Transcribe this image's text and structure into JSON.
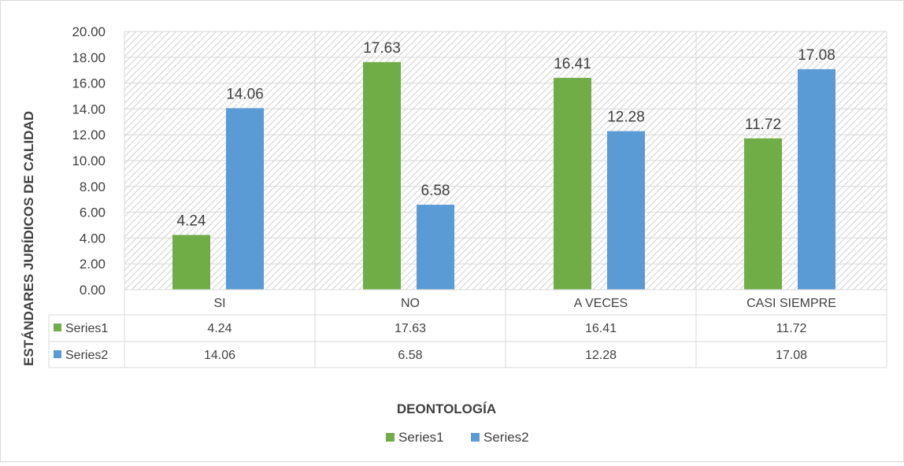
{
  "chart_data": {
    "type": "bar",
    "categories": [
      "SI",
      "NO",
      "A VECES",
      "CASI SIEMPRE"
    ],
    "series": [
      {
        "name": "Series1",
        "values": [
          4.24,
          17.63,
          16.41,
          11.72
        ],
        "color": "#70AD47"
      },
      {
        "name": "Series2",
        "values": [
          14.06,
          6.58,
          12.28,
          17.08
        ],
        "color": "#5B9BD5"
      }
    ],
    "data_labels": {
      "Series1": [
        "4.24",
        "17.63",
        "16.41",
        "11.72"
      ],
      "Series2": [
        "14.06",
        "6.58",
        "12.28",
        "17.08"
      ]
    },
    "title": "",
    "xlabel": "DEONTOLOGÍA",
    "ylabel": "ESTÁNDARES JURÍDICOS DE CALIDAD",
    "ylim": [
      0,
      20
    ],
    "yticks": [
      "0.00",
      "2.00",
      "4.00",
      "6.00",
      "8.00",
      "10.00",
      "12.00",
      "14.00",
      "16.00",
      "18.00",
      "20.00"
    ],
    "data_table": true,
    "grid": true,
    "plot_background": "hatched",
    "legend_position": "bottom"
  }
}
